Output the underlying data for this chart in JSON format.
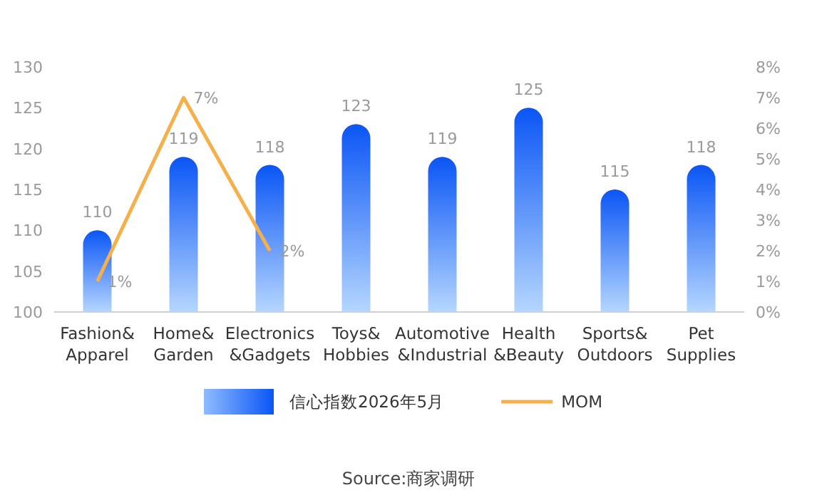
{
  "chart_data": {
    "type": "bar",
    "categories": [
      "Fashion& Apparel",
      "Home& Garden",
      "Electronics &Gadgets",
      "Toys& Hobbies",
      "Automotive &Industrial",
      "Health &Beauty",
      "Sports& Outdoors",
      "Pet Supplies"
    ],
    "series": [
      {
        "name": "信心指数2026年5月",
        "color": "#0a55f5",
        "values": [
          110,
          119,
          118,
          123,
          119,
          125,
          115,
          118
        ],
        "value_labels": [
          "110",
          "119",
          "118",
          "123",
          "119",
          "125",
          "115",
          "118"
        ]
      },
      {
        "name": "MOM",
        "type": "line",
        "axis": "y2",
        "color": "#f5b04a",
        "values": [
          1,
          7,
          2,
          null,
          null,
          null,
          null,
          null
        ],
        "value_labels": [
          "1%",
          "7%",
          "2%",
          null,
          null,
          null,
          null,
          null
        ]
      }
    ],
    "ylim": [
      100,
      130
    ],
    "yticks": [
      100,
      105,
      110,
      115,
      120,
      125,
      130
    ],
    "y2lim": [
      0,
      8
    ],
    "y2ticks": [
      {
        "value": 0,
        "label": "0%"
      },
      {
        "value": 1,
        "label": "1%"
      },
      {
        "value": 2,
        "label": "2%"
      },
      {
        "value": 3,
        "label": "3%"
      },
      {
        "value": 4,
        "label": "4%"
      },
      {
        "value": 5,
        "label": "5%"
      },
      {
        "value": 6,
        "label": "6%"
      },
      {
        "value": 7,
        "label": "7%"
      },
      {
        "value": 8,
        "label": "8%"
      }
    ],
    "legend": "bottom",
    "annotations": [
      "Source:商家调研"
    ]
  }
}
